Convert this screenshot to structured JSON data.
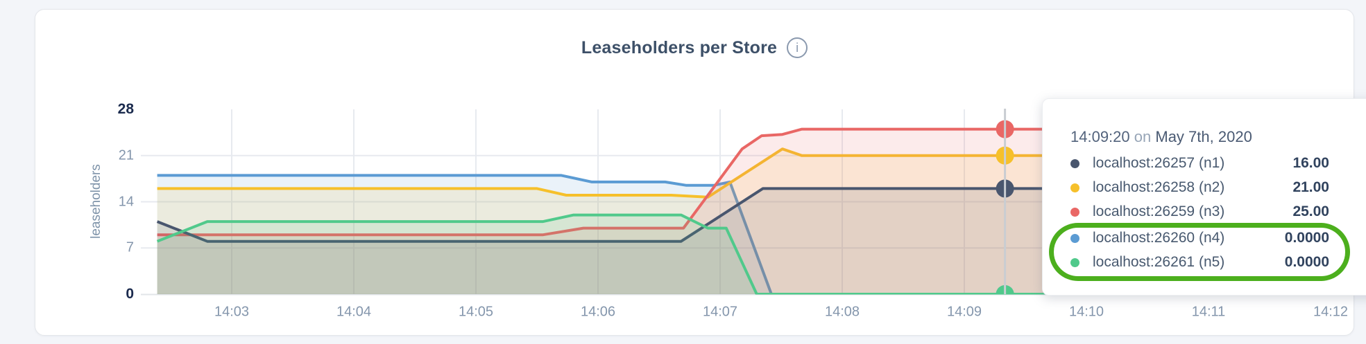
{
  "header": {
    "title": "Leaseholders per Store",
    "info_glyph": "i"
  },
  "chart_data": {
    "type": "area",
    "title": "Leaseholders per Store",
    "xlabel": "",
    "ylabel": "leaseholders",
    "ylim": [
      0,
      28
    ],
    "grid": true,
    "legend_position": "tooltip-right",
    "yticks": [
      {
        "label": "28",
        "value": 28,
        "bold": true
      },
      {
        "label": "21",
        "value": 21,
        "bold": false
      },
      {
        "label": "14",
        "value": 14,
        "bold": false
      },
      {
        "label": "7",
        "value": 7,
        "bold": false
      },
      {
        "label": "0",
        "value": 0,
        "bold": true
      }
    ],
    "xticks": [
      {
        "label": "14:03",
        "minute": 3
      },
      {
        "label": "14:04",
        "minute": 4
      },
      {
        "label": "14:05",
        "minute": 5
      },
      {
        "label": "14:06",
        "minute": 6
      },
      {
        "label": "14:07",
        "minute": 7
      },
      {
        "label": "14:08",
        "minute": 8
      },
      {
        "label": "14:09",
        "minute": 9
      },
      {
        "label": "14:10",
        "minute": 10
      },
      {
        "label": "14:11",
        "minute": 11
      },
      {
        "label": "14:12",
        "minute": 12
      }
    ],
    "x_domain_minutes": [
      2.39,
      12.41
    ],
    "series": [
      {
        "name": "localhost:26257 (n1)",
        "color": "#49566e",
        "z": 4,
        "points": [
          [
            2.39,
            11
          ],
          [
            2.8,
            8
          ],
          [
            6.68,
            8
          ],
          [
            7.35,
            16
          ],
          [
            12.41,
            16
          ]
        ]
      },
      {
        "name": "localhost:26258 (n2)",
        "color": "#f6c02b",
        "z": 2,
        "points": [
          [
            2.39,
            16
          ],
          [
            5.5,
            16
          ],
          [
            5.74,
            15
          ],
          [
            6.6,
            15
          ],
          [
            6.9,
            14.7
          ],
          [
            7.51,
            22
          ],
          [
            7.67,
            21
          ],
          [
            12.41,
            21
          ]
        ]
      },
      {
        "name": "localhost:26259 (n3)",
        "color": "#e96765",
        "z": 3,
        "points": [
          [
            2.39,
            9
          ],
          [
            5.55,
            9
          ],
          [
            5.88,
            10
          ],
          [
            6.7,
            10
          ],
          [
            6.96,
            16.5
          ],
          [
            7.18,
            22
          ],
          [
            7.34,
            24
          ],
          [
            7.51,
            24.2
          ],
          [
            7.67,
            25
          ],
          [
            12.41,
            25
          ]
        ]
      },
      {
        "name": "localhost:26260 (n4)",
        "color": "#5b9bd3",
        "z": 1,
        "points": [
          [
            2.39,
            18
          ],
          [
            5.7,
            18
          ],
          [
            5.95,
            17
          ],
          [
            6.55,
            17
          ],
          [
            6.72,
            16.5
          ],
          [
            6.95,
            16.5
          ],
          [
            7.08,
            17
          ],
          [
            7.42,
            0
          ],
          [
            12.41,
            0
          ]
        ]
      },
      {
        "name": "localhost:26261 (n5)",
        "color": "#50c98b",
        "z": 5,
        "points": [
          [
            2.39,
            8
          ],
          [
            2.8,
            11
          ],
          [
            5.55,
            11
          ],
          [
            5.8,
            12
          ],
          [
            6.68,
            12
          ],
          [
            6.9,
            10
          ],
          [
            7.05,
            10
          ],
          [
            7.3,
            0
          ],
          [
            12.41,
            0
          ]
        ]
      }
    ],
    "crosshair": {
      "minute": 9.333,
      "time_label": "14:09:20",
      "values": [
        16,
        21,
        25,
        0,
        0
      ]
    }
  },
  "tooltip": {
    "time": "14:09:20",
    "on_word": "on",
    "date": "May 7th, 2020",
    "rows": [
      {
        "label": "localhost:26257 (n1)",
        "value": "16.00",
        "color": "#49566e",
        "highlighted": false
      },
      {
        "label": "localhost:26258 (n2)",
        "value": "21.00",
        "color": "#f6c02b",
        "highlighted": false
      },
      {
        "label": "localhost:26259 (n3)",
        "value": "25.00",
        "color": "#e96765",
        "highlighted": false
      },
      {
        "label": "localhost:26260 (n4)",
        "value": "0.0000",
        "color": "#5b9bd3",
        "highlighted": true
      },
      {
        "label": "localhost:26261 (n5)",
        "value": "0.0000",
        "color": "#50c98b",
        "highlighted": true
      }
    ],
    "annotation_color": "#4caf1d"
  }
}
